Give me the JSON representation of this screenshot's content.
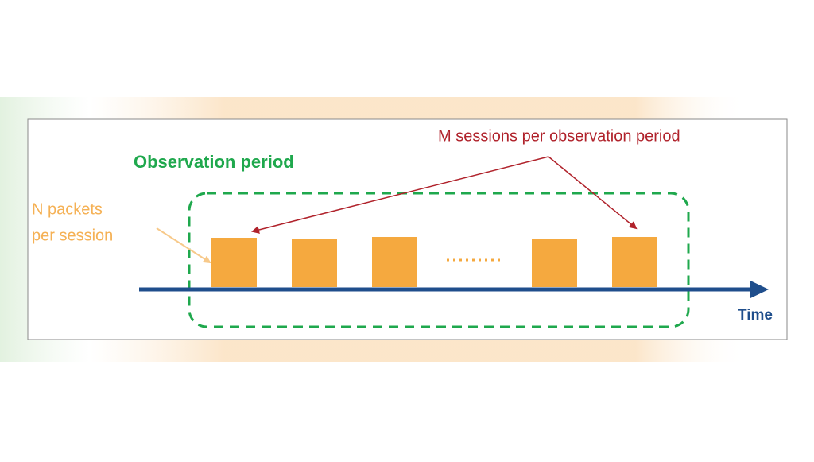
{
  "sessions_label": "M sessions per observation period",
  "observation_label": "Observation period",
  "packets_label": [
    "N packets",
    "per session"
  ],
  "axis_label": "Time"
}
